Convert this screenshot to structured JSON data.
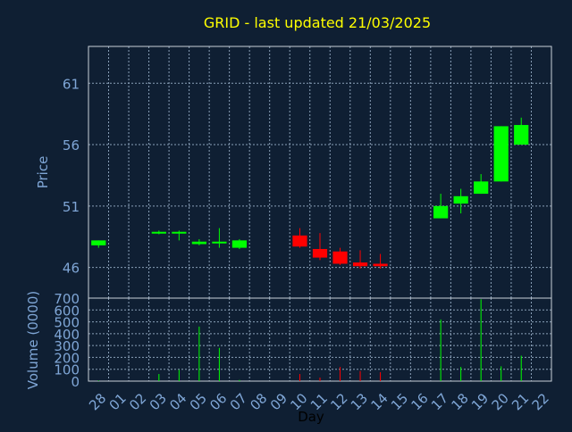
{
  "chart_data": [
    {
      "type": "candlestick",
      "title": "GRID - last updated 21/03/2025",
      "xlabel": "Day",
      "ylabel": "Price",
      "ylim": [
        43.5,
        64
      ],
      "yticks": [
        46,
        51,
        56,
        61
      ],
      "grid": true,
      "colors": {
        "up": "#00ff00",
        "down": "#ff0000",
        "text": "#ffff00",
        "axis_text": "#7fa6d6",
        "frame": "#e8e8e8"
      },
      "days": [
        "28",
        "01",
        "02",
        "03",
        "04",
        "05",
        "06",
        "07",
        "08",
        "09",
        "10",
        "11",
        "12",
        "13",
        "14",
        "15",
        "16",
        "17",
        "18",
        "19",
        "20",
        "21",
        "22"
      ],
      "candles": [
        {
          "day": "28",
          "open": 47.8,
          "close": 48.2,
          "high": 48.2,
          "low": 47.6
        },
        {
          "day": "03",
          "open": 48.8,
          "close": 48.9,
          "high": 49.0,
          "low": 48.7
        },
        {
          "day": "04",
          "open": 48.8,
          "close": 48.9,
          "high": 49.0,
          "low": 48.2
        },
        {
          "day": "05",
          "open": 47.9,
          "close": 48.1,
          "high": 48.3,
          "low": 47.8
        },
        {
          "day": "06",
          "open": 48.0,
          "close": 48.1,
          "high": 49.2,
          "low": 47.6
        },
        {
          "day": "07",
          "open": 47.6,
          "close": 48.2,
          "high": 48.3,
          "low": 47.5
        },
        {
          "day": "10",
          "open": 48.6,
          "close": 47.7,
          "high": 49.2,
          "low": 47.6
        },
        {
          "day": "11",
          "open": 47.5,
          "close": 46.8,
          "high": 48.8,
          "low": 46.6
        },
        {
          "day": "12",
          "open": 47.3,
          "close": 46.3,
          "high": 47.6,
          "low": 46.2
        },
        {
          "day": "13",
          "open": 46.4,
          "close": 46.1,
          "high": 47.4,
          "low": 45.9
        },
        {
          "day": "14",
          "open": 46.3,
          "close": 46.1,
          "high": 47.1,
          "low": 45.9
        },
        {
          "day": "17",
          "open": 50.0,
          "close": 51.0,
          "high": 52.0,
          "low": 50.0
        },
        {
          "day": "18",
          "open": 51.2,
          "close": 51.8,
          "high": 52.4,
          "low": 50.4
        },
        {
          "day": "19",
          "open": 52.0,
          "close": 53.0,
          "high": 53.6,
          "low": 52.0
        },
        {
          "day": "20",
          "open": 53.0,
          "close": 57.5,
          "high": 57.5,
          "low": 53.0
        },
        {
          "day": "21",
          "open": 56.0,
          "close": 57.6,
          "high": 58.2,
          "low": 56.0
        }
      ]
    },
    {
      "type": "bar",
      "ylabel": "Volume (0000)",
      "ylim": [
        0,
        700
      ],
      "yticks": [
        0,
        100,
        200,
        300,
        400,
        500,
        600,
        700
      ],
      "bars": [
        {
          "day": "28",
          "value": 5,
          "dir": "up"
        },
        {
          "day": "03",
          "value": 60,
          "dir": "up"
        },
        {
          "day": "04",
          "value": 95,
          "dir": "up"
        },
        {
          "day": "05",
          "value": 460,
          "dir": "up"
        },
        {
          "day": "06",
          "value": 280,
          "dir": "up"
        },
        {
          "day": "07",
          "value": 10,
          "dir": "up"
        },
        {
          "day": "10",
          "value": 60,
          "dir": "down"
        },
        {
          "day": "11",
          "value": 30,
          "dir": "down"
        },
        {
          "day": "12",
          "value": 120,
          "dir": "down"
        },
        {
          "day": "13",
          "value": 85,
          "dir": "down"
        },
        {
          "day": "14",
          "value": 75,
          "dir": "down"
        },
        {
          "day": "17",
          "value": 520,
          "dir": "up"
        },
        {
          "day": "18",
          "value": 120,
          "dir": "up"
        },
        {
          "day": "19",
          "value": 690,
          "dir": "up"
        },
        {
          "day": "20",
          "value": 125,
          "dir": "up"
        },
        {
          "day": "21",
          "value": 215,
          "dir": "up"
        }
      ]
    }
  ]
}
